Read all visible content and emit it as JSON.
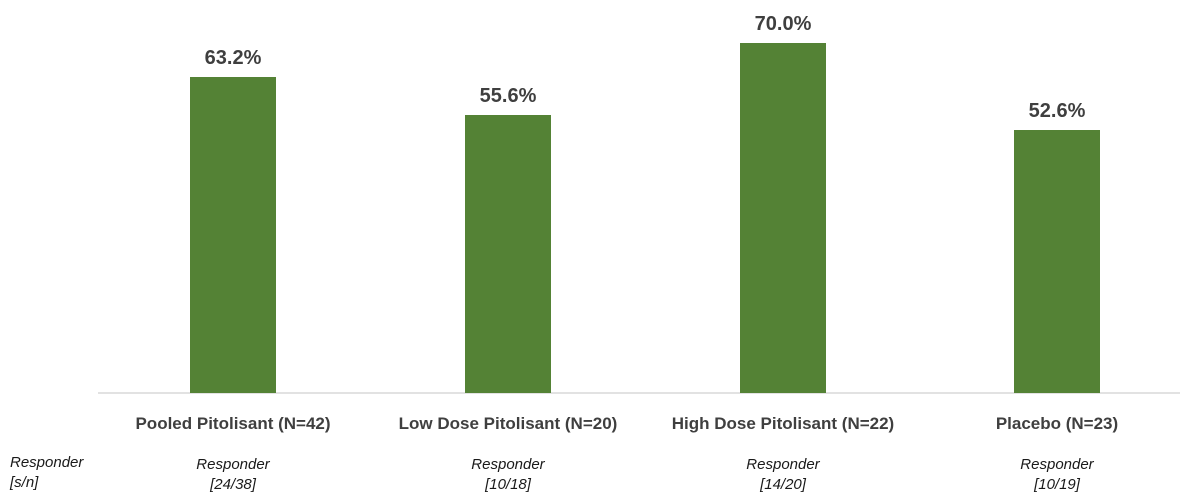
{
  "chart_data": {
    "type": "bar",
    "categories": [
      "Pooled Pitolisant (N=42)",
      "Low Dose Pitolisant (N=20)",
      "High Dose Pitolisant (N=22)",
      "Placebo (N=23)"
    ],
    "values": [
      63.2,
      55.6,
      70.0,
      52.6
    ],
    "data_labels": [
      "63.2%",
      "55.6%",
      "70.0%",
      "52.6%"
    ],
    "bar_color": "#548235",
    "grid": false,
    "legend": "none"
  },
  "responder_row": {
    "header_line1": "Responder",
    "header_line2": "[s/n]",
    "items": [
      {
        "line1": "Responder",
        "line2": "[24/38]"
      },
      {
        "line1": "Responder",
        "line2": "[10/18]"
      },
      {
        "line1": "Responder",
        "line2": "[14/20]"
      },
      {
        "line1": "Responder",
        "line2": "[10/19]"
      }
    ]
  }
}
